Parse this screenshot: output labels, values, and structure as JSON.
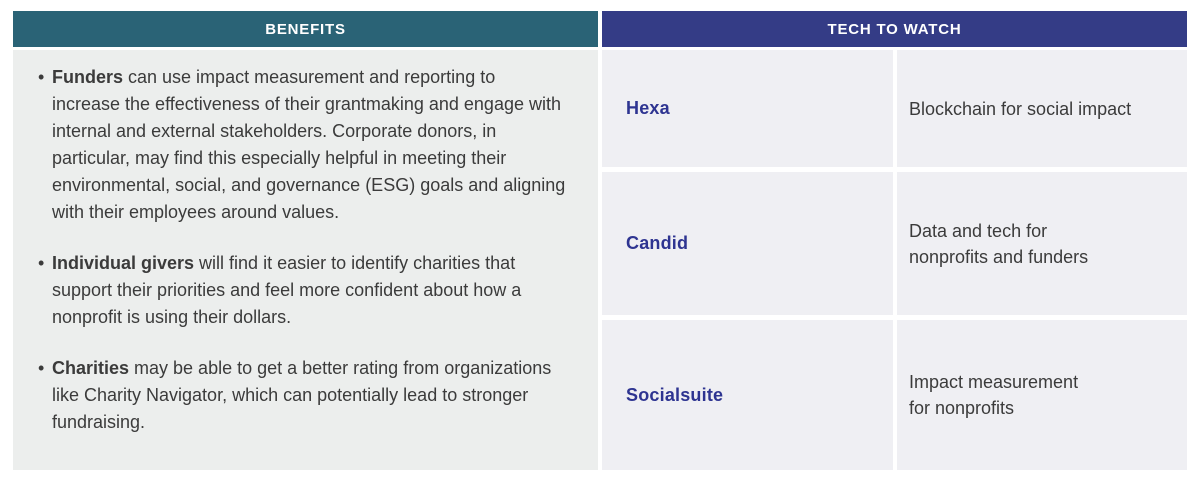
{
  "colors": {
    "page_bg": "#FFFFFF",
    "benefits_header_bg": "#2A6376",
    "tech_header_bg": "#343C86",
    "header_text": "#FFFFFF",
    "benefits_panel_bg": "#ECEEED",
    "tech_cell_bg": "#EFEFF3",
    "company_name_text": "#2E3491",
    "body_text": "#3B3B3B"
  },
  "benefits": {
    "header": "BENEFITS",
    "bullet_glyph": "•",
    "items": [
      {
        "bold": "Funders",
        "text": " can use impact measurement and reporting to increase the effectiveness of their grantmaking and engage with internal and external stakeholders. Corporate donors, in particular, may find this especially helpful in meeting their environmental, social, and governance (ESG) goals and aligning with their employees around values."
      },
      {
        "bold": "Individual givers",
        "text": " will find it easier to identify charities that support their priorities and feel more confident about how a nonprofit is using their dollars."
      },
      {
        "bold": "Charities",
        "text": " may be able to get a better rating from organizations like Charity Navigator, which can potentially lead to stronger fundraising."
      }
    ]
  },
  "tech": {
    "header": "TECH TO WATCH",
    "rows": [
      {
        "name": "Hexa",
        "desc_lines": [
          "Blockchain for social impact"
        ]
      },
      {
        "name": "Candid",
        "desc_lines": [
          "Data and tech for",
          "nonprofits and funders"
        ]
      },
      {
        "name": "Socialsuite",
        "desc_lines": [
          "Impact measurement",
          "for nonprofits"
        ]
      }
    ]
  }
}
